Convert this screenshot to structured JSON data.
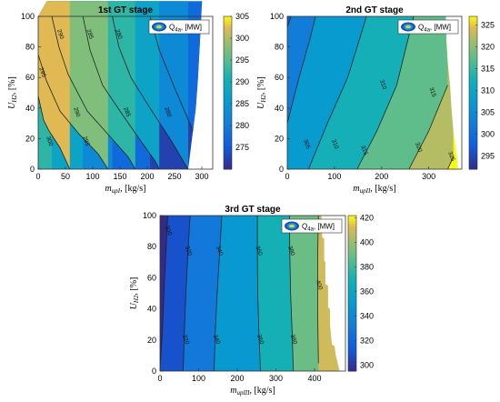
{
  "chart_data": [
    {
      "type": "contour",
      "title": "1st GT stage",
      "xlabel": {
        "main": "m",
        "sub": "upI",
        "rest": ", [kg/s]"
      },
      "ylabel": {
        "main": "U",
        "sub": "H2",
        "rest": ", [%]"
      },
      "xlim": [
        0,
        320
      ],
      "ylim": [
        0,
        100
      ],
      "xticks": [
        0,
        50,
        100,
        150,
        200,
        250,
        300
      ],
      "yticks": [
        0,
        20,
        40,
        60,
        80,
        100
      ],
      "colorbar": {
        "min": 270,
        "max": 305,
        "ticks": [
          275,
          280,
          285,
          290,
          295,
          300,
          305
        ]
      },
      "legend": {
        "main": "Q",
        "sub": "4a",
        "rest": ", [MW]"
      },
      "feasible_xmax": [
        [
          0,
          275
        ],
        [
          20,
          282
        ],
        [
          40,
          289
        ],
        [
          60,
          293
        ],
        [
          80,
          296
        ],
        [
          100,
          299
        ],
        [
          120,
          302
        ],
        [
          140,
          304
        ],
        [
          160,
          306
        ],
        [
          185,
          309
        ],
        [
          225,
          313
        ],
        [
          260,
          315
        ],
        [
          285,
          317
        ],
        [
          300,
          318
        ]
      ],
      "contour_lines": [
        {
          "level": 300,
          "points": [
            [
              0,
              48
            ],
            [
              10,
              32
            ],
            [
              20,
              25
            ],
            [
              40,
              14
            ],
            [
              58,
              0
            ]
          ]
        },
        {
          "level": 295,
          "points": [
            [
              0,
              75
            ],
            [
              15,
              58
            ],
            [
              40,
              38
            ],
            [
              75,
              23
            ],
            [
              110,
              10
            ],
            [
              128,
              0
            ]
          ]
        },
        {
          "level": 290,
          "points": [
            [
              25,
              100
            ],
            [
              38,
              80
            ],
            [
              55,
              62
            ],
            [
              90,
              38
            ],
            [
              140,
              18
            ],
            [
              165,
              8
            ],
            [
              178,
              0
            ]
          ]
        },
        {
          "level": 285,
          "points": [
            [
              82,
              100
            ],
            [
              95,
              78
            ],
            [
              118,
              55
            ],
            [
              150,
              38
            ],
            [
              185,
              20
            ],
            [
              215,
              5
            ],
            [
              222,
              0
            ]
          ]
        },
        {
          "level": 280,
          "points": [
            [
              136,
              100
            ],
            [
              148,
              80
            ],
            [
              170,
              60
            ],
            [
              205,
              40
            ],
            [
              245,
              18
            ],
            [
              268,
              4
            ],
            [
              275,
              0
            ]
          ]
        },
        {
          "level": 275,
          "points": [
            [
              205,
              100
            ],
            [
              222,
              78
            ],
            [
              248,
              55
            ],
            [
              278,
              30
            ],
            [
              305,
              6
            ],
            [
              316,
              0
            ]
          ]
        }
      ],
      "line_labels": [
        {
          "text": "290",
          "x": 38,
          "y": 88
        },
        {
          "text": "285",
          "x": 92,
          "y": 88
        },
        {
          "text": "280",
          "x": 145,
          "y": 88
        },
        {
          "text": "295",
          "x": 5,
          "y": 63
        },
        {
          "text": "290",
          "x": 68,
          "y": 37
        },
        {
          "text": "285",
          "x": 160,
          "y": 37
        },
        {
          "text": "280",
          "x": 235,
          "y": 37
        },
        {
          "text": "300",
          "x": 18,
          "y": 18
        },
        {
          "text": "295",
          "x": 85,
          "y": 18
        }
      ]
    },
    {
      "type": "contour",
      "title": "2nd GT stage",
      "xlabel": {
        "main": "m",
        "sub": "upII",
        "rest": ", [kg/s]"
      },
      "ylabel": {
        "main": "U",
        "sub": "H2",
        "rest": ", [%]"
      },
      "xlim": [
        0,
        370
      ],
      "ylim": [
        0,
        100
      ],
      "xticks": [
        0,
        100,
        200,
        300
      ],
      "yticks": [
        0,
        20,
        40,
        60,
        80,
        100
      ],
      "colorbar": {
        "min": 292,
        "max": 327,
        "ticks": [
          295,
          300,
          305,
          310,
          315,
          320,
          325
        ]
      },
      "legend": {
        "main": "Q",
        "sub": "4a",
        "rest": ", [MW]"
      },
      "feasible_xmax": [
        [
          0,
          362
        ],
        [
          12,
          358
        ],
        [
          25,
          352
        ],
        [
          40,
          348
        ],
        [
          55,
          345
        ],
        [
          70,
          340
        ],
        [
          85,
          337
        ],
        [
          100,
          336
        ]
      ],
      "contour_lines": [
        {
          "level": 300,
          "points": [
            [
              0,
              93
            ],
            [
              8,
              100
            ]
          ]
        },
        {
          "level": 305,
          "points": [
            [
              0,
              30
            ],
            [
              25,
              60
            ],
            [
              48,
              85
            ],
            [
              60,
              100
            ]
          ]
        },
        {
          "level": 310,
          "points": [
            [
              45,
              0
            ],
            [
              85,
              30
            ],
            [
              128,
              60
            ],
            [
              168,
              100
            ]
          ]
        },
        {
          "level": 315,
          "points": [
            [
              148,
              0
            ],
            [
              190,
              25
            ],
            [
              232,
              55
            ],
            [
              268,
              100
            ]
          ]
        },
        {
          "level": 320,
          "points": [
            [
              258,
              0
            ],
            [
              300,
              25
            ],
            [
              340,
              55
            ]
          ]
        },
        {
          "level": 325,
          "points": [
            [
              340,
              0
            ],
            [
              352,
              8
            ]
          ]
        }
      ],
      "line_labels": [
        {
          "text": "305",
          "x": 38,
          "y": 16
        },
        {
          "text": "310",
          "x": 98,
          "y": 16
        },
        {
          "text": "315",
          "x": 160,
          "y": 12
        },
        {
          "text": "320",
          "x": 275,
          "y": 14
        },
        {
          "text": "325",
          "x": 345,
          "y": 8
        },
        {
          "text": "310",
          "x": 200,
          "y": 55
        },
        {
          "text": "315",
          "x": 305,
          "y": 50
        }
      ]
    },
    {
      "type": "contour",
      "title": "3rd GT stage",
      "xlabel": {
        "main": "m",
        "sub": "upIII",
        "rest": ", [kg/s]"
      },
      "ylabel": {
        "main": "U",
        "sub": "H2",
        "rest": ", [%]"
      },
      "xlim": [
        0,
        480
      ],
      "ylim": [
        0,
        100
      ],
      "xticks": [
        0,
        100,
        200,
        300,
        400
      ],
      "yticks": [
        0,
        20,
        40,
        60,
        80,
        100
      ],
      "colorbar": {
        "min": 295,
        "max": 422,
        "ticks": [
          300,
          320,
          340,
          360,
          380,
          400,
          420
        ]
      },
      "legend": {
        "main": "Q",
        "sub": "4a",
        "rest": ", [MW]"
      },
      "feasible_xmax": [
        [
          0,
          465
        ],
        [
          10,
          455
        ],
        [
          16,
          452
        ],
        [
          17,
          445
        ],
        [
          30,
          440
        ],
        [
          40,
          440
        ],
        [
          41,
          435
        ],
        [
          55,
          435
        ],
        [
          56,
          428
        ],
        [
          70,
          428
        ],
        [
          71,
          425
        ],
        [
          85,
          425
        ],
        [
          86,
          420
        ],
        [
          100,
          418
        ]
      ],
      "contour_lines": [
        {
          "level": 300,
          "points": [
            [
              0,
              2
            ],
            [
              6,
              25
            ],
            [
              10,
              50
            ],
            [
              15,
              75
            ],
            [
              20,
              100
            ]
          ]
        },
        {
          "level": 320,
          "points": [
            [
              60,
              0
            ],
            [
              63,
              25
            ],
            [
              67,
              50
            ],
            [
              72,
              75
            ],
            [
              78,
              100
            ]
          ]
        },
        {
          "level": 340,
          "points": [
            [
              140,
              0
            ],
            [
              143,
              25
            ],
            [
              148,
              50
            ],
            [
              154,
              75
            ],
            [
              160,
              100
            ]
          ]
        },
        {
          "level": 360,
          "points": [
            [
              260,
              0
            ],
            [
              256,
              25
            ],
            [
              253,
              50
            ],
            [
              252,
              75
            ],
            [
              252,
              100
            ]
          ]
        },
        {
          "level": 380,
          "points": [
            [
              345,
              0
            ],
            [
              342,
              25
            ],
            [
              338,
              50
            ],
            [
              336,
              75
            ],
            [
              335,
              100
            ]
          ]
        },
        {
          "level": 400,
          "points": [
            [
              410,
              5
            ],
            [
              408,
              40
            ],
            [
              408,
              70
            ],
            [
              410,
              100
            ]
          ]
        }
      ],
      "line_labels": [
        {
          "text": "300",
          "x": 18,
          "y": 90
        },
        {
          "text": "320",
          "x": 70,
          "y": 77
        },
        {
          "text": "340",
          "x": 150,
          "y": 77
        },
        {
          "text": "360",
          "x": 252,
          "y": 77
        },
        {
          "text": "380",
          "x": 336,
          "y": 77
        },
        {
          "text": "400",
          "x": 408,
          "y": 55
        },
        {
          "text": "320",
          "x": 63,
          "y": 20
        },
        {
          "text": "340",
          "x": 143,
          "y": 20
        },
        {
          "text": "360",
          "x": 256,
          "y": 20
        },
        {
          "text": "380",
          "x": 342,
          "y": 20
        }
      ]
    }
  ]
}
